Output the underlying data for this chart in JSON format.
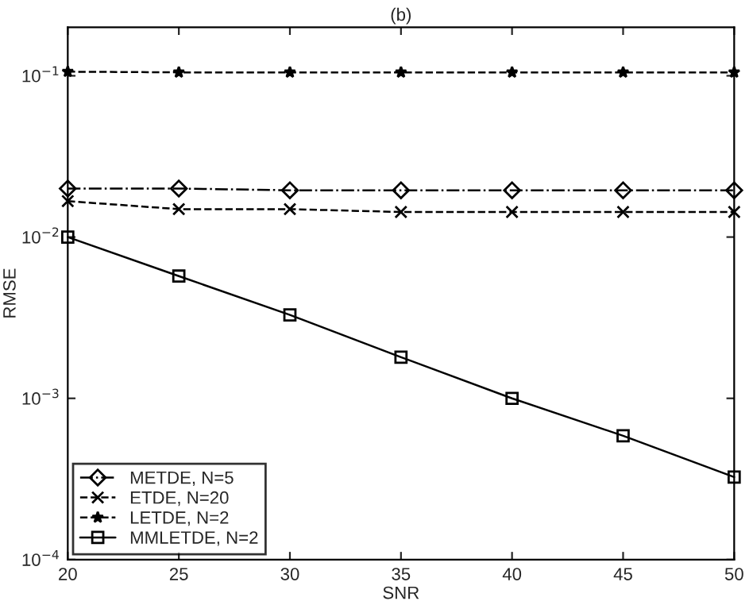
{
  "chart_data": {
    "type": "line",
    "title": "(b)",
    "xlabel": "SNR",
    "ylabel": "RMSE",
    "log": "y",
    "grid": false,
    "legend": "bottom left",
    "x": [
      20,
      25,
      30,
      35,
      40,
      45,
      50
    ],
    "xlim": [
      20,
      50
    ],
    "xticks": [
      20,
      25,
      30,
      35,
      40,
      45,
      50
    ],
    "ylim": [
      0.0001,
      0.2
    ],
    "yticks": [
      {
        "value": 0.0001,
        "label": "10$^{−4}$"
      },
      {
        "value": 0.001,
        "label": "10$^{−3}$"
      },
      {
        "value": 0.01,
        "label": "10$^{−2}$"
      },
      {
        "value": 0.1,
        "label": "10$^{−1}$"
      }
    ],
    "series": [
      {
        "name": "METDE, N=5",
        "color": "#000000",
        "marker": "diamond",
        "line_style": "dashdot",
        "values": [
          0.02,
          0.02,
          0.0195,
          0.0195,
          0.0195,
          0.0195,
          0.0195
        ]
      },
      {
        "name": "ETDE, N=20",
        "color": "#000000",
        "marker": "cross",
        "line_style": "dashed",
        "values": [
          0.0167,
          0.0149,
          0.0149,
          0.0143,
          0.0143,
          0.0143,
          0.0143
        ]
      },
      {
        "name": "LETDE, N=2",
        "color": "#000000",
        "marker": "star",
        "line_style": "dashed",
        "values": [
          0.106,
          0.105,
          0.105,
          0.105,
          0.105,
          0.105,
          0.105
        ]
      },
      {
        "name": "MMLETDE, N=2",
        "color": "#000000",
        "marker": "square",
        "line_style": "solid",
        "values": [
          0.01,
          0.00573,
          0.00329,
          0.0018,
          0.001,
          0.000586,
          0.000325
        ]
      }
    ]
  }
}
